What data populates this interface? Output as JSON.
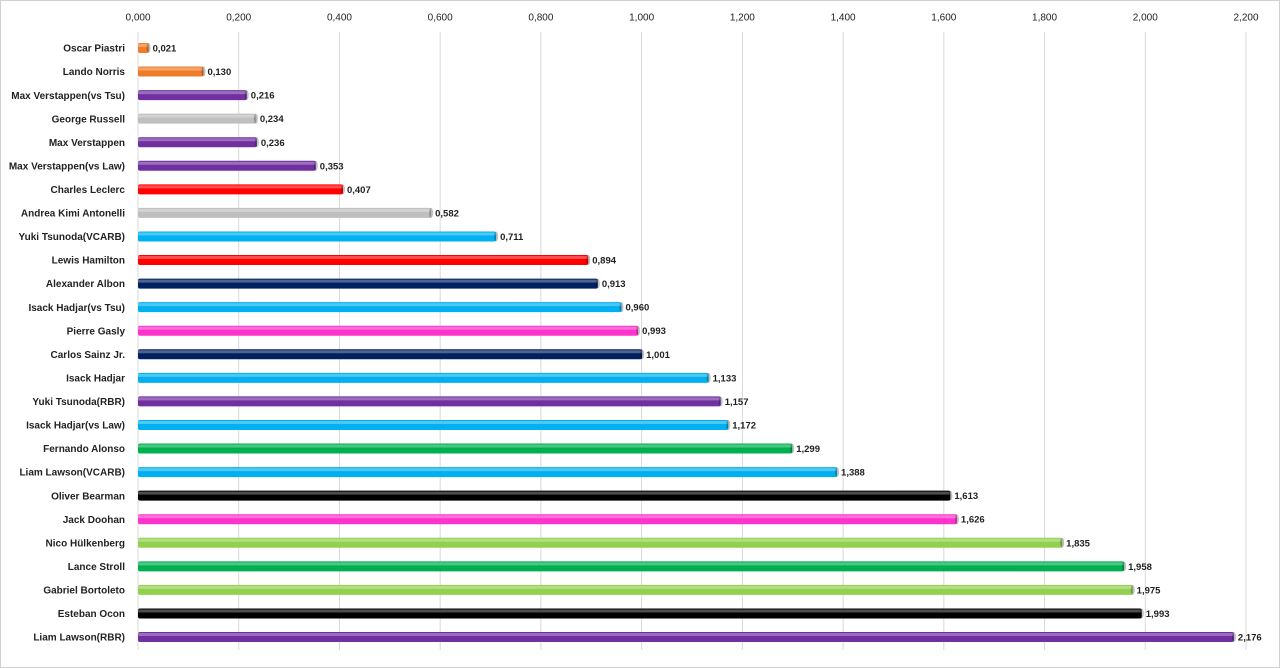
{
  "chart_data": {
    "type": "bar",
    "orientation": "horizontal",
    "categories": [
      "Oscar Piastri",
      "Lando Norris",
      "Max Verstappen(vs Tsu)",
      "George Russell",
      "Max Verstappen",
      "Max Verstappen(vs Law)",
      "Charles Leclerc",
      "Andrea Kimi Antonelli",
      "Yuki Tsunoda(VCARB)",
      "Lewis Hamilton",
      "Alexander Albon",
      "Isack Hadjar(vs Tsu)",
      "Pierre Gasly",
      "Carlos Sainz Jr.",
      "Isack Hadjar",
      "Yuki Tsunoda(RBR)",
      "Isack Hadjar(vs Law)",
      "Fernando Alonso",
      "Liam Lawson(VCARB)",
      "Oliver Bearman",
      "Jack Doohan",
      "Nico Hülkenberg",
      "Lance Stroll",
      "Gabriel Bortoleto",
      "Esteban Ocon",
      "Liam Lawson(RBR)"
    ],
    "values": [
      0.021,
      0.13,
      0.216,
      0.234,
      0.236,
      0.353,
      0.407,
      0.582,
      0.711,
      0.894,
      0.913,
      0.96,
      0.993,
      1.001,
      1.133,
      1.157,
      1.172,
      1.299,
      1.388,
      1.613,
      1.626,
      1.835,
      1.958,
      1.975,
      1.993,
      2.176
    ],
    "value_labels": [
      "0,021",
      "0,130",
      "0,216",
      "0,234",
      "0,236",
      "0,353",
      "0,407",
      "0,582",
      "0,711",
      "0,894",
      "0,913",
      "0,960",
      "0,993",
      "1,001",
      "1,133",
      "1,157",
      "1,172",
      "1,299",
      "1,388",
      "1,613",
      "1,626",
      "1,835",
      "1,958",
      "1,975",
      "1,993",
      "2,176"
    ],
    "colors": [
      "#f07c2a",
      "#f07c2a",
      "#7030a0",
      "#bfbfbf",
      "#7030a0",
      "#7030a0",
      "#ff0000",
      "#bfbfbf",
      "#00b0f0",
      "#ff0000",
      "#002060",
      "#00b0f0",
      "#ff33cc",
      "#002060",
      "#00b0f0",
      "#7030a0",
      "#00b0f0",
      "#00b050",
      "#00b0f0",
      "#000000",
      "#ff33cc",
      "#92d050",
      "#00b050",
      "#92d050",
      "#000000",
      "#7030a0"
    ],
    "xlim": [
      0,
      2.2
    ],
    "xticks": [
      {
        "value": 0,
        "label": "0,000"
      },
      {
        "value": 0.2,
        "label": "0,200"
      },
      {
        "value": 0.4,
        "label": "0,400"
      },
      {
        "value": 0.6,
        "label": "0,600"
      },
      {
        "value": 0.8,
        "label": "0,800"
      },
      {
        "value": 1.0,
        "label": "1,000"
      },
      {
        "value": 1.2,
        "label": "1,200"
      },
      {
        "value": 1.4,
        "label": "1,400"
      },
      {
        "value": 1.6,
        "label": "1,600"
      },
      {
        "value": 1.8,
        "label": "1,800"
      },
      {
        "value": 2.0,
        "label": "2,000"
      },
      {
        "value": 2.2,
        "label": "2,200"
      }
    ],
    "grid": true
  }
}
